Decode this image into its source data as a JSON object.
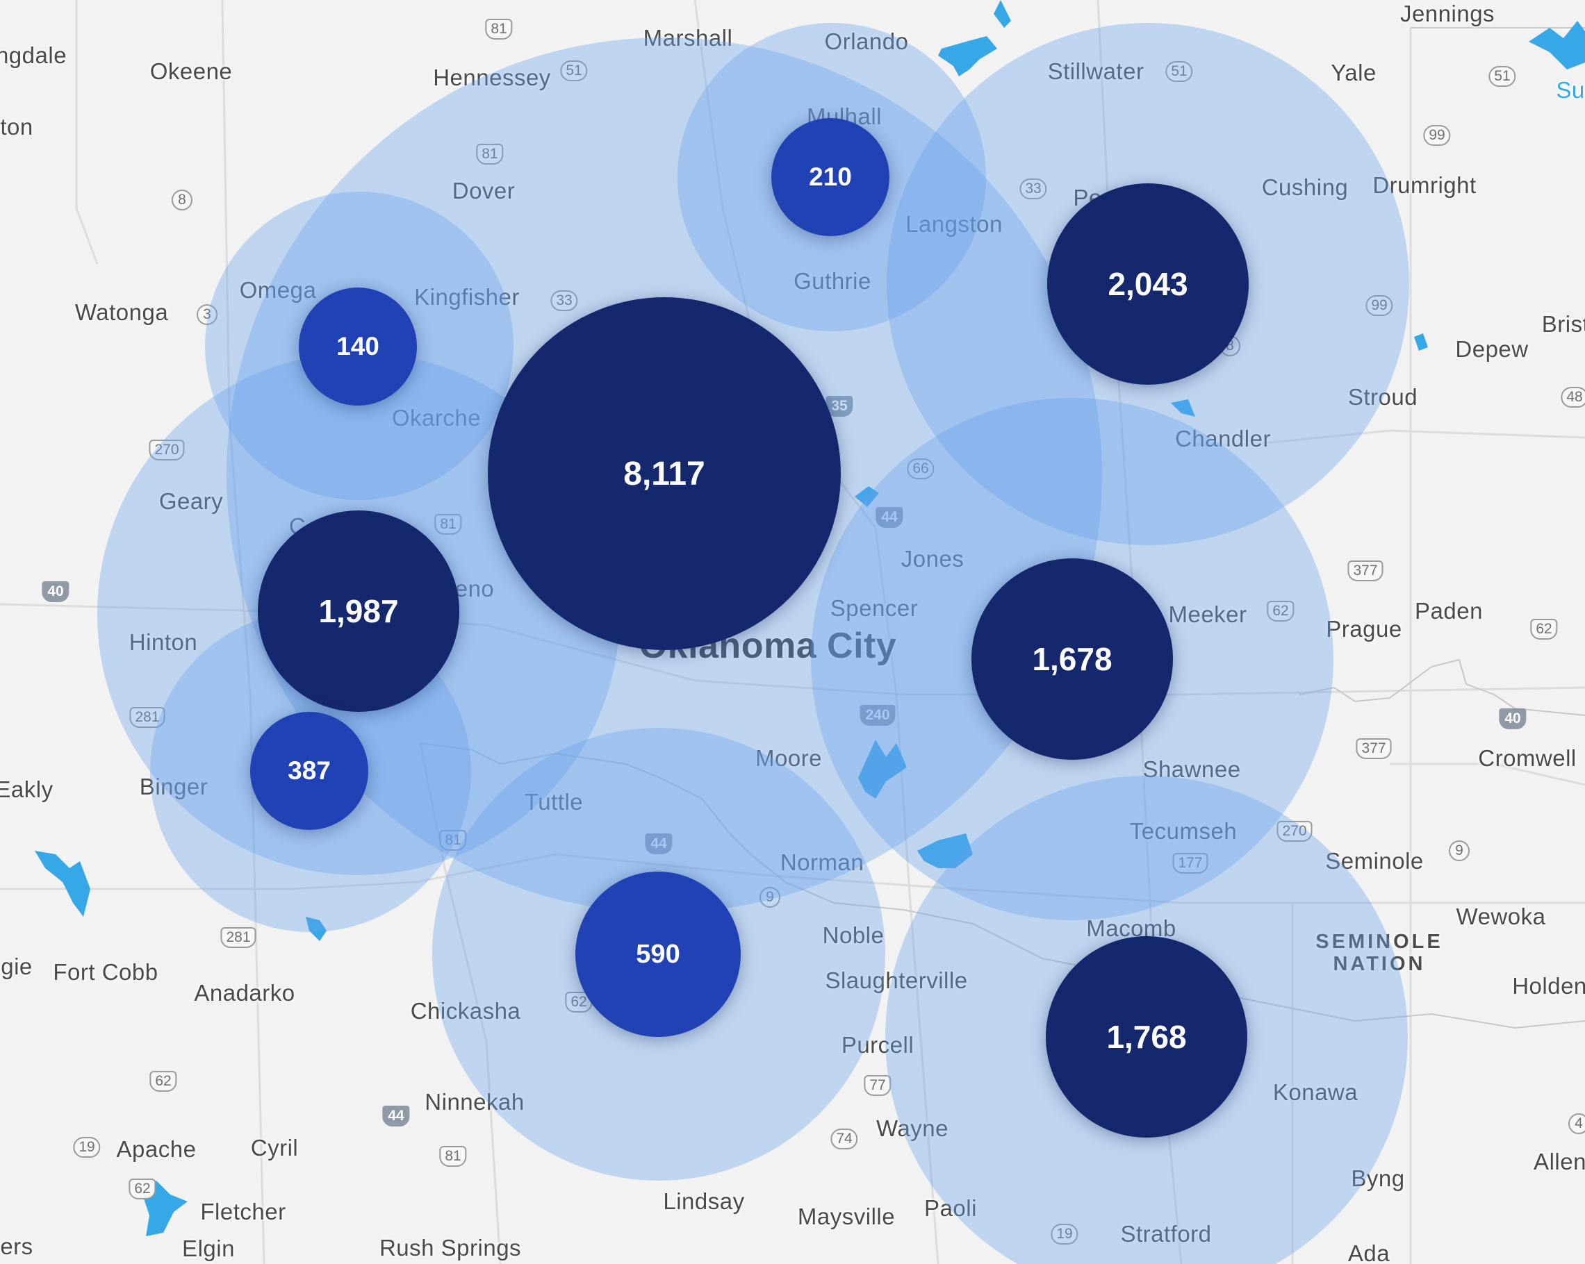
{
  "colors": {
    "cluster_large": "#15286e",
    "cluster_medium": "#2142b5",
    "halo": "#67a0ec",
    "water": "#36a8e8",
    "land": "#f1f2f1"
  },
  "clusters": [
    {
      "id": "okc",
      "count": "8,117",
      "tier": "large"
    },
    {
      "id": "stroud",
      "count": "2,043",
      "tier": "large"
    },
    {
      "id": "el-reno",
      "count": "1,987",
      "tier": "large"
    },
    {
      "id": "meeker",
      "count": "1,678",
      "tier": "large"
    },
    {
      "id": "macomb",
      "count": "1,768",
      "tier": "large"
    },
    {
      "id": "chickasha",
      "count": "590",
      "tier": "medium"
    },
    {
      "id": "binger",
      "count": "387",
      "tier": "medium"
    },
    {
      "id": "mulhall",
      "count": "210",
      "tier": "medium"
    },
    {
      "id": "omega",
      "count": "140",
      "tier": "medium"
    }
  ],
  "places": [
    "ngdale",
    "Okeene",
    "Hennessey",
    "Marshall",
    "Orlando",
    "Stillwater",
    "Yale",
    "Jennings",
    "Su",
    "ton",
    "Dover",
    "Mulhall",
    "Langston",
    "Cushing",
    "Drumright",
    "Pe",
    "Watonga",
    "Omega",
    "Kingfisher",
    "Guthrie",
    "Depew",
    "Brist",
    "Okarche",
    "Stroud",
    "Chandler",
    "Geary",
    "C",
    "eno",
    "Jones",
    "Spencer",
    "Oklahoma City",
    "Meeker",
    "Prague",
    "Paden",
    "Hinton",
    "Moore",
    "Shawnee",
    "Cromwell",
    "Eakly",
    "Binger",
    "Tuttle",
    "Tecumseh",
    "Norman",
    "Seminole",
    "Noble",
    "Macomb",
    "Wewoka",
    "SEMINOLE NATION",
    "gie",
    "Fort Cobb",
    "Anadarko",
    "Slaughterville",
    "Holden",
    "Chickasha",
    "Purcell",
    "Ninnekah",
    "Konawa",
    "Wayne",
    "Apache",
    "Cyril",
    "Allen",
    "Fletcher",
    "Lindsay",
    "Byng",
    "Paoli",
    "Maysville",
    "Stratford",
    "ers",
    "Elgin",
    "Rush Springs",
    "Ada"
  ],
  "routes": [
    "81",
    "51",
    "51",
    "51",
    "8",
    "81",
    "33",
    "3",
    "33",
    "99",
    "99",
    "35",
    "8",
    "270",
    "81",
    "66",
    "44",
    "40",
    "377",
    "62",
    "62",
    "281",
    "240",
    "40",
    "377",
    "270",
    "177",
    "81",
    "44",
    "9",
    "9",
    "281",
    "62",
    "62",
    "77",
    "19",
    "74",
    "44",
    "81",
    "19",
    "62",
    "4",
    "48"
  ]
}
